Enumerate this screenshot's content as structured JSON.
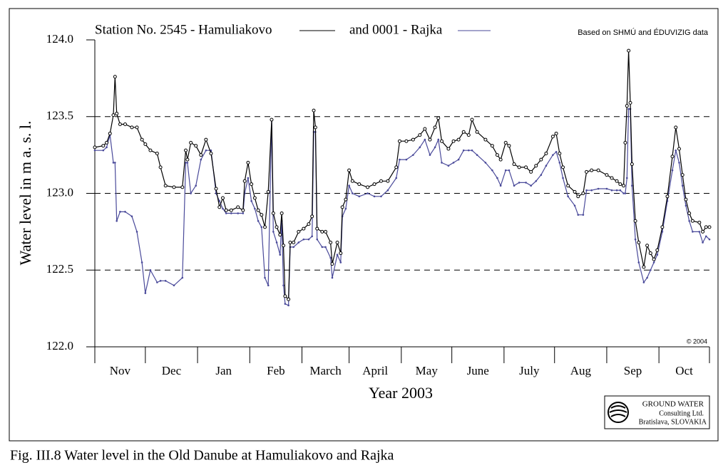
{
  "chart_data": {
    "type": "line",
    "title": "Based on SHMÚ and ÉDUVIZIG data",
    "copyright": "© 2004",
    "y_label": "Water level in m a. s. l.",
    "x_label": "Year 2003",
    "caption": "Fig. III.8  Water level in the Old Danube at Hamuliakovo and Rajka",
    "logo": [
      "GROUND WATER",
      "Consulting Ltd.",
      "Bratislava, SLOVAKIA"
    ],
    "categories": [
      "Nov",
      "Dec",
      "Jan",
      "Feb",
      "March",
      "April",
      "May",
      "June",
      "July",
      "Aug",
      "Sep",
      "Oct"
    ],
    "xlim": [
      0,
      365
    ],
    "xticks": [
      0,
      30,
      61,
      92,
      123,
      151,
      182,
      212,
      243,
      273,
      304,
      335,
      365
    ],
    "ylim": [
      122.0,
      124.0
    ],
    "yticks": [
      {
        "value": 122.0,
        "label": "122.0"
      },
      {
        "value": 122.5,
        "label": "122.5"
      },
      {
        "value": 123.0,
        "label": "123.0"
      },
      {
        "value": 123.5,
        "label": "123.5"
      },
      {
        "value": 124.0,
        "label": "124.0"
      }
    ],
    "grid": true,
    "x": [
      0,
      5,
      7,
      9,
      11,
      12,
      13,
      15,
      18,
      22,
      25,
      28,
      30,
      33,
      37,
      39,
      42,
      47,
      52,
      54,
      55,
      57,
      60,
      63,
      66,
      69,
      72,
      74,
      76,
      78,
      81,
      85,
      88,
      89,
      91,
      93,
      95,
      97,
      99,
      101,
      103,
      105,
      106,
      108,
      110,
      111,
      112,
      113,
      115,
      116,
      118,
      121,
      124,
      127,
      129,
      130,
      131,
      132,
      135,
      137,
      140,
      141,
      144,
      146,
      147,
      149,
      151,
      153,
      157,
      162,
      166,
      170,
      174,
      179,
      181,
      185,
      189,
      193,
      196,
      199,
      202,
      204,
      206,
      210,
      213,
      216,
      219,
      222,
      224,
      227,
      232,
      236,
      239,
      241,
      244,
      246,
      249,
      252,
      256,
      259,
      262,
      265,
      268,
      272,
      274,
      276,
      278,
      281,
      285,
      287,
      290,
      292,
      295,
      299,
      304,
      307,
      310,
      312,
      314,
      315,
      316,
      317,
      318,
      319,
      321,
      323,
      326,
      328,
      330,
      332,
      334,
      337,
      340,
      343,
      345,
      347,
      349,
      351,
      353,
      355,
      359,
      361,
      363,
      365
    ],
    "series": [
      {
        "name": "Station No. 2545 - Hamuliakovo",
        "color": "#000000",
        "values": [
          123.3,
          123.31,
          123.33,
          123.39,
          123.51,
          123.76,
          123.52,
          123.45,
          123.45,
          123.43,
          123.43,
          123.35,
          123.32,
          123.28,
          123.26,
          123.17,
          123.05,
          123.04,
          123.04,
          123.28,
          123.22,
          123.33,
          123.31,
          123.25,
          123.35,
          123.26,
          123.03,
          122.91,
          122.97,
          122.89,
          122.89,
          122.91,
          122.89,
          123.08,
          123.2,
          123.06,
          122.97,
          122.89,
          122.86,
          122.78,
          123.01,
          123.48,
          122.87,
          122.78,
          122.73,
          122.87,
          122.66,
          122.33,
          122.31,
          122.68,
          122.68,
          122.75,
          122.77,
          122.8,
          122.85,
          123.54,
          123.43,
          122.77,
          122.75,
          122.75,
          122.68,
          122.54,
          122.68,
          122.61,
          122.91,
          122.96,
          123.15,
          123.08,
          123.06,
          123.04,
          123.06,
          123.08,
          123.08,
          123.17,
          123.34,
          123.34,
          123.35,
          123.38,
          123.42,
          123.35,
          123.43,
          123.49,
          123.34,
          123.29,
          123.34,
          123.35,
          123.4,
          123.38,
          123.48,
          123.4,
          123.35,
          123.31,
          123.25,
          123.22,
          123.33,
          123.31,
          123.19,
          123.17,
          123.17,
          123.14,
          123.18,
          123.22,
          123.26,
          123.37,
          123.39,
          123.26,
          123.17,
          123.05,
          123.01,
          122.98,
          123.0,
          123.14,
          123.15,
          123.15,
          123.12,
          123.1,
          123.08,
          123.06,
          123.05,
          123.33,
          123.57,
          123.93,
          123.59,
          123.19,
          122.82,
          122.68,
          122.52,
          122.66,
          122.61,
          122.57,
          122.63,
          122.78,
          122.98,
          123.24,
          123.43,
          123.29,
          123.12,
          122.96,
          122.87,
          122.82,
          122.81,
          122.75,
          122.78,
          122.78
        ]
      },
      {
        "name": "and 0001 - Rajka",
        "color": "#4a4a9a",
        "values": [
          123.28,
          123.28,
          123.3,
          123.38,
          123.2,
          123.2,
          122.82,
          122.88,
          122.88,
          122.85,
          122.75,
          122.55,
          122.35,
          122.5,
          122.42,
          122.43,
          122.43,
          122.4,
          122.45,
          123.2,
          123.2,
          123.0,
          123.05,
          123.22,
          123.28,
          123.28,
          123.0,
          122.95,
          122.9,
          122.87,
          122.87,
          122.87,
          122.87,
          123.0,
          123.1,
          122.95,
          122.9,
          122.82,
          122.78,
          122.45,
          122.4,
          123.48,
          122.75,
          122.68,
          122.6,
          122.82,
          122.4,
          122.28,
          122.27,
          122.65,
          122.65,
          122.68,
          122.7,
          122.7,
          122.72,
          123.4,
          123.4,
          122.7,
          122.65,
          122.65,
          122.58,
          122.45,
          122.6,
          122.55,
          122.85,
          122.9,
          123.05,
          123.0,
          122.98,
          123.0,
          122.98,
          122.98,
          123.02,
          123.1,
          123.22,
          123.22,
          123.25,
          123.3,
          123.35,
          123.25,
          123.3,
          123.35,
          123.2,
          123.18,
          123.2,
          123.22,
          123.28,
          123.28,
          123.28,
          123.25,
          123.2,
          123.15,
          123.1,
          123.05,
          123.15,
          123.15,
          123.05,
          123.07,
          123.07,
          123.05,
          123.08,
          123.12,
          123.18,
          123.25,
          123.27,
          123.2,
          123.1,
          122.98,
          122.92,
          122.86,
          122.86,
          123.02,
          123.02,
          123.03,
          123.03,
          123.02,
          123.02,
          123.02,
          123.0,
          123.0,
          123.1,
          123.55,
          123.55,
          123.05,
          122.7,
          122.55,
          122.42,
          122.45,
          122.5,
          122.55,
          122.6,
          122.75,
          122.95,
          123.15,
          123.28,
          123.2,
          123.05,
          122.92,
          122.82,
          122.75,
          122.75,
          122.68,
          122.72,
          122.7
        ]
      }
    ]
  }
}
